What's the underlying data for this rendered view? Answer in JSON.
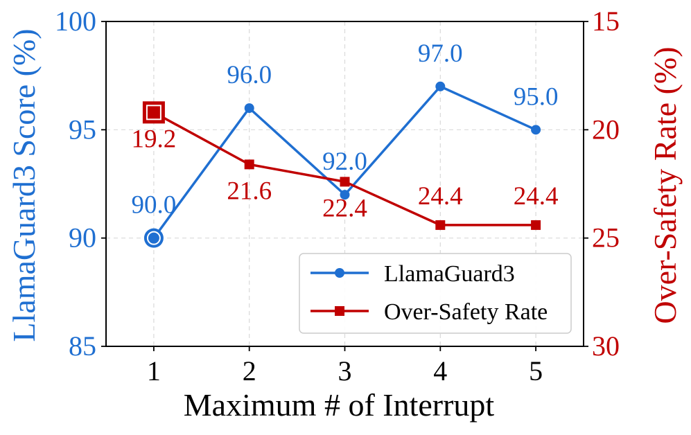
{
  "chart_data": {
    "type": "line",
    "x": [
      1,
      2,
      3,
      4,
      5
    ],
    "xlim": [
      0.5,
      5.5
    ],
    "xlabel": "Maximum # of Interrupt",
    "grid": true,
    "left_axis": {
      "label": "LlamaGuard3 Score (%)",
      "ylim": [
        85,
        100
      ],
      "ticks": [
        85,
        90,
        95,
        100
      ],
      "color": "#1f6fd1"
    },
    "right_axis": {
      "label": "Over-Safety Rate (%)",
      "ylim": [
        30,
        15
      ],
      "inverted": true,
      "ticks": [
        15,
        20,
        25,
        30
      ],
      "color": "#c00000"
    },
    "series": [
      {
        "name": "LlamaGuard3",
        "axis": "left",
        "marker": "circle",
        "color": "#1f6fd1",
        "values": [
          90.0,
          96.0,
          92.0,
          97.0,
          95.0
        ],
        "labels": [
          "90.0",
          "96.0",
          "92.0",
          "97.0",
          "95.0"
        ],
        "highlight_index": 0
      },
      {
        "name": "Over-Safety Rate",
        "axis": "right",
        "marker": "square",
        "color": "#c00000",
        "values": [
          19.2,
          21.6,
          22.4,
          24.4,
          24.4
        ],
        "labels": [
          "19.2",
          "21.6",
          "22.4",
          "24.4",
          "24.4"
        ],
        "highlight_index": 0
      }
    ],
    "legend": {
      "placement": "lower-right",
      "entries": [
        "LlamaGuard3",
        "Over-Safety Rate"
      ]
    }
  }
}
